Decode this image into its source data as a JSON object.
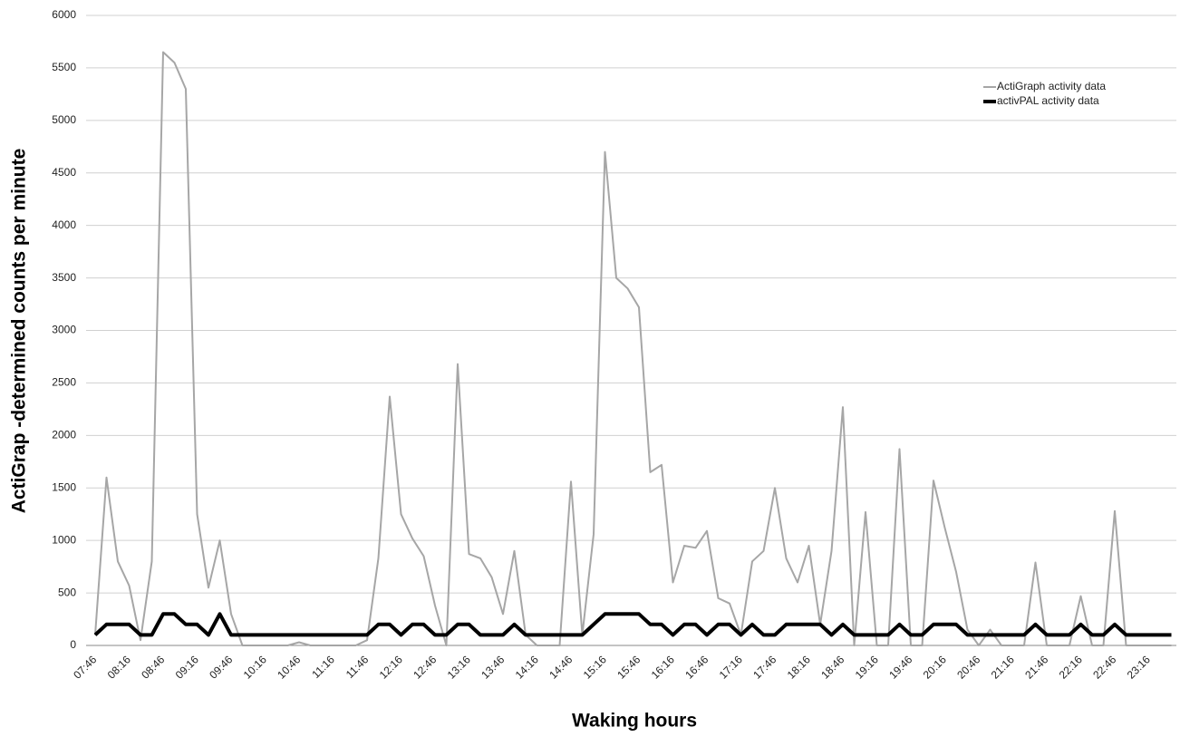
{
  "chart_data": {
    "type": "line",
    "y_label": "ActiGrap -determined counts per minute",
    "x_label": "Waking hours",
    "categories": [
      "07:46",
      null,
      null,
      "08:16",
      null,
      null,
      "08:46",
      null,
      null,
      "09:16",
      null,
      null,
      "09:46",
      null,
      null,
      "10:16",
      null,
      null,
      "10:46",
      null,
      null,
      "11:16",
      null,
      null,
      "11:46",
      null,
      null,
      "12:16",
      null,
      null,
      "12:46",
      null,
      null,
      "13:16",
      null,
      null,
      "13:46",
      null,
      null,
      "14:16",
      null,
      null,
      "14:46",
      null,
      null,
      "15:16",
      null,
      null,
      "15:46",
      null,
      null,
      "16:16",
      null,
      null,
      "16:46",
      null,
      null,
      "17:16",
      null,
      null,
      "17:46",
      null,
      null,
      "18:16",
      null,
      null,
      "18:46",
      null,
      null,
      "19:16",
      null,
      null,
      "19:46",
      null,
      null,
      "20:16",
      null,
      null,
      "20:46",
      null,
      null,
      "21:16",
      null,
      null,
      "21:46",
      null,
      null,
      "22:16",
      null,
      null,
      "22:46",
      null,
      null,
      "23:16",
      null,
      null
    ],
    "series": [
      {
        "name": "ActiGraph activity data",
        "color": "#a6a6a6",
        "values": [
          100,
          1600,
          800,
          570,
          50,
          800,
          5650,
          5550,
          5300,
          1250,
          550,
          1000,
          300,
          0,
          0,
          0,
          0,
          0,
          30,
          0,
          0,
          0,
          0,
          0,
          50,
          830,
          2370,
          1250,
          1020,
          850,
          380,
          0,
          2680,
          870,
          830,
          650,
          300,
          900,
          100,
          0,
          0,
          0,
          1560,
          100,
          1060,
          4700,
          3500,
          3400,
          3220,
          1650,
          1720,
          600,
          950,
          930,
          1090,
          450,
          400,
          100,
          800,
          900,
          1500,
          830,
          600,
          950,
          200,
          900,
          2270,
          0,
          1270,
          0,
          0,
          1870,
          0,
          0,
          1570,
          1120,
          700,
          150,
          0,
          150,
          0,
          0,
          0,
          790,
          0,
          0,
          0,
          470,
          0,
          0,
          1280,
          0,
          0,
          0,
          0,
          0
        ]
      },
      {
        "name": "activPAL activity data",
        "color": "#000000",
        "values": [
          100,
          200,
          200,
          200,
          100,
          100,
          300,
          300,
          200,
          200,
          100,
          300,
          100,
          100,
          100,
          100,
          100,
          100,
          100,
          100,
          100,
          100,
          100,
          100,
          100,
          200,
          200,
          100,
          200,
          200,
          100,
          100,
          200,
          200,
          100,
          100,
          100,
          200,
          100,
          100,
          100,
          100,
          100,
          100,
          200,
          300,
          300,
          300,
          300,
          200,
          200,
          100,
          200,
          200,
          100,
          200,
          200,
          100,
          200,
          100,
          100,
          200,
          200,
          200,
          200,
          100,
          200,
          100,
          100,
          100,
          100,
          200,
          100,
          100,
          200,
          200,
          200,
          100,
          100,
          100,
          100,
          100,
          100,
          200,
          100,
          100,
          100,
          200,
          100,
          100,
          200,
          100,
          100,
          100,
          100,
          100
        ]
      }
    ],
    "ylim": [
      0,
      6000
    ],
    "yticks": [
      0,
      500,
      1000,
      1500,
      2000,
      2500,
      3000,
      3500,
      4000,
      4500,
      5000,
      5500,
      6000
    ],
    "grid": true,
    "legend": "top-right"
  }
}
